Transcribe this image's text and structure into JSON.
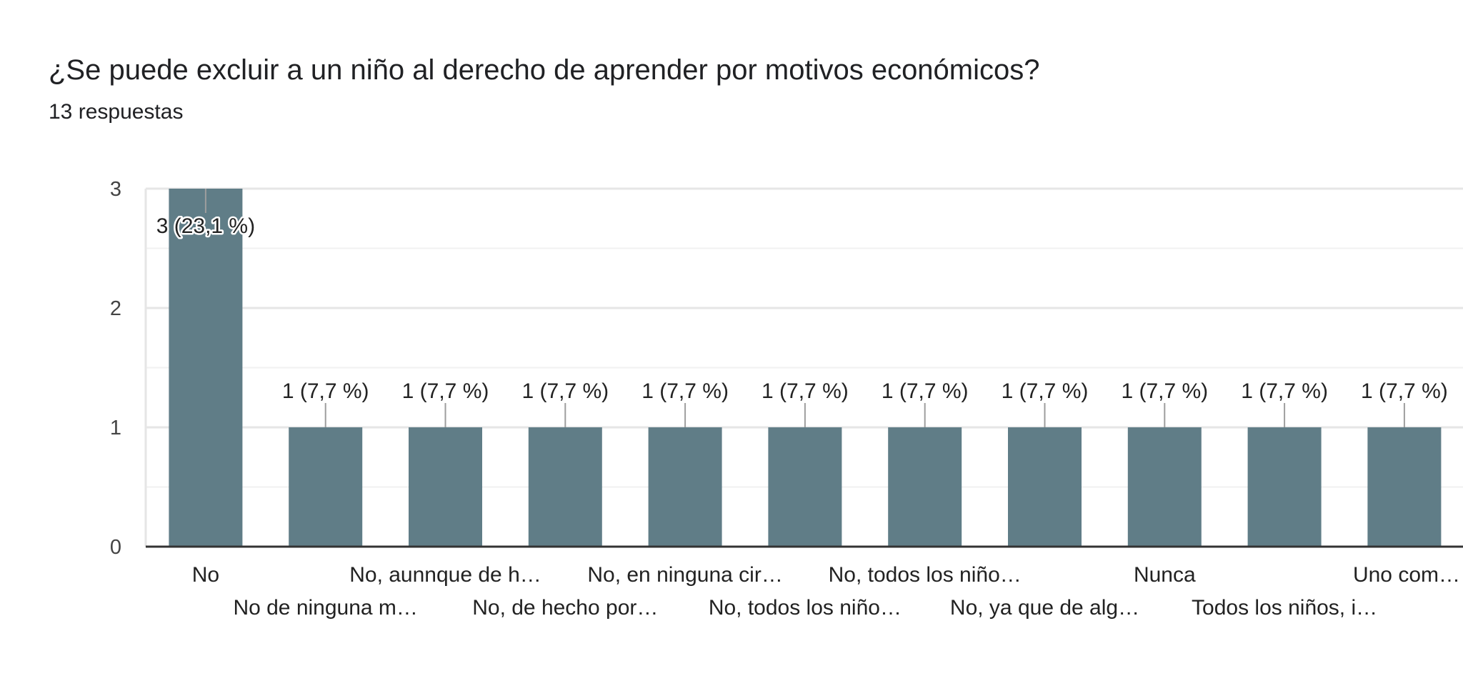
{
  "title": "¿Se puede excluir a un niño al derecho de aprender por motivos económicos?",
  "subtitle": "13 respuestas",
  "colors": {
    "bar": "#607d87",
    "grid": "#e6e6e6",
    "axis": "#333333",
    "leader": "#9e9e9e"
  },
  "chart_data": {
    "type": "bar",
    "title": "¿Se puede excluir a un niño al derecho de aprender por motivos económicos?",
    "subtitle": "13 respuestas",
    "xlabel": "",
    "ylabel": "",
    "ylim": [
      0,
      3
    ],
    "yticks": [
      0,
      1,
      2,
      3
    ],
    "grid": true,
    "legend": "none",
    "categories": [
      "No",
      "No de ninguna m…",
      "No, aunnque de h…",
      "No, de hecho por…",
      "No, en ninguna cir…",
      "No, todos los niño…",
      "No, todos los niño…",
      "No, ya que de alg…",
      "Nunca",
      "Todos los niños, i…",
      "Uno com…"
    ],
    "values": [
      3,
      1,
      1,
      1,
      1,
      1,
      1,
      1,
      1,
      1,
      1
    ],
    "data_labels": [
      "3 (23,1 %)",
      "1 (7,7 %)",
      "1 (7,7 %)",
      "1 (7,7 %)",
      "1 (7,7 %)",
      "1 (7,7 %)",
      "1 (7,7 %)",
      "1 (7,7 %)",
      "1 (7,7 %)",
      "1 (7,7 %)",
      "1 (7,7 %)"
    ]
  }
}
